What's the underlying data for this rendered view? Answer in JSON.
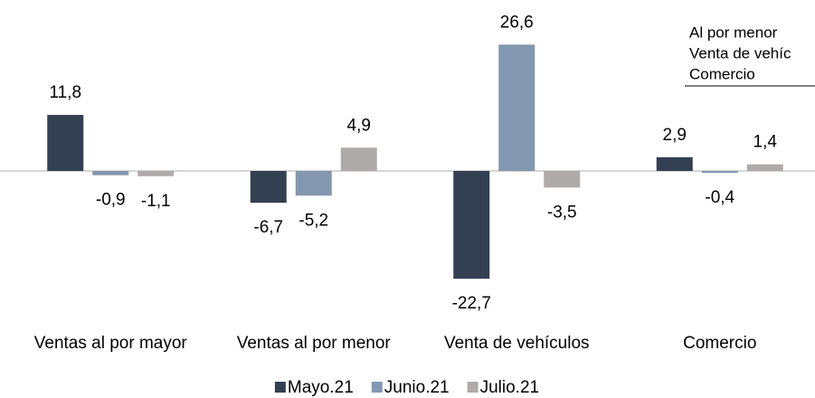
{
  "chart_data": {
    "type": "bar",
    "categories": [
      "Ventas al por mayor",
      "Ventas al por menor",
      "Venta de vehículos",
      "Comercio"
    ],
    "series": [
      {
        "name": "Mayo.21",
        "color": "#343f52",
        "values": [
          11.8,
          -6.7,
          -22.7,
          2.9
        ],
        "value_labels": [
          "11,8",
          "-6,7",
          "-22,7",
          "2,9"
        ]
      },
      {
        "name": "Junio.21",
        "color": "#8497b0",
        "values": [
          -0.9,
          -5.2,
          26.6,
          -0.4
        ],
        "value_labels": [
          "-0,9",
          "-5,2",
          "26,6",
          "-0,4"
        ]
      },
      {
        "name": "Julio.21",
        "color": "#afabab",
        "values": [
          -1.1,
          4.9,
          -3.5,
          1.4
        ],
        "value_labels": [
          "-1,1",
          "4,9",
          "-3,5",
          "1,4"
        ]
      }
    ],
    "annotations": [
      "Al por menor",
      "Venta de vehíc",
      "Comercio"
    ]
  }
}
